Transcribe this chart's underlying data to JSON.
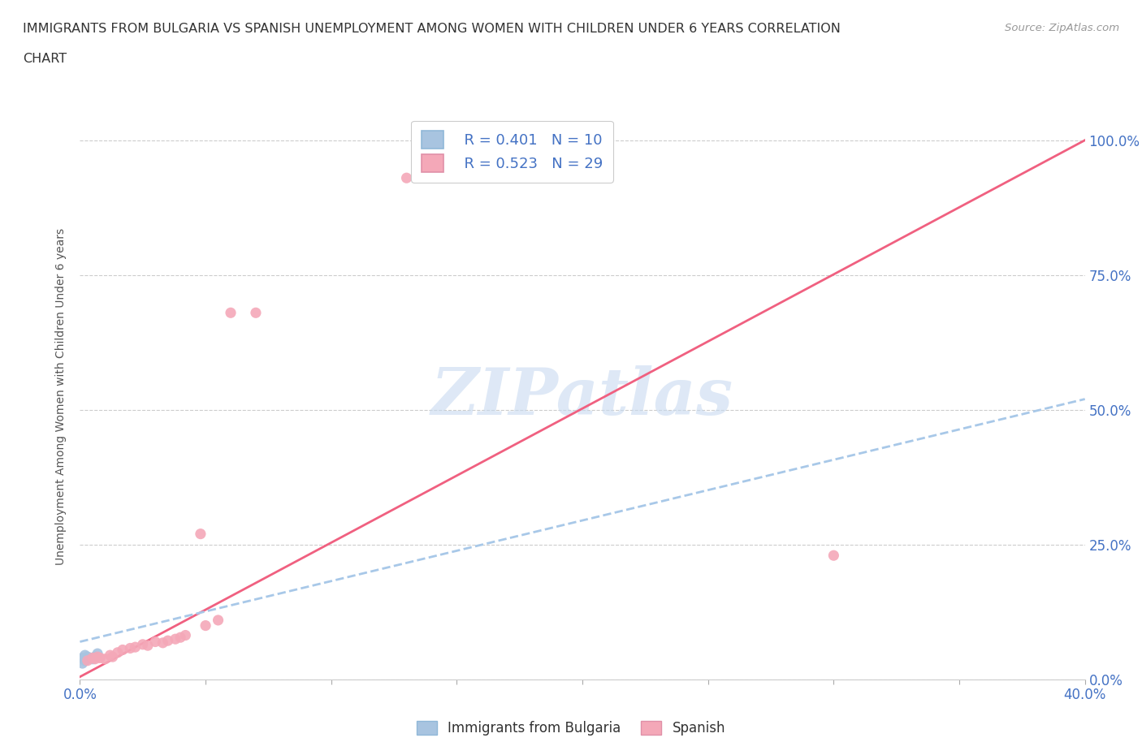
{
  "title_line1": "IMMIGRANTS FROM BULGARIA VS SPANISH UNEMPLOYMENT AMONG WOMEN WITH CHILDREN UNDER 6 YEARS CORRELATION",
  "title_line2": "CHART",
  "source": "Source: ZipAtlas.com",
  "ylabel": "Unemployment Among Women with Children Under 6 years",
  "xlim": [
    0.0,
    0.4
  ],
  "ylim": [
    0.0,
    1.05
  ],
  "yticks": [
    0.0,
    0.25,
    0.5,
    0.75,
    1.0
  ],
  "ytick_labels": [
    "0.0%",
    "25.0%",
    "50.0%",
    "75.0%",
    "100.0%"
  ],
  "xticks": [
    0.0,
    0.05,
    0.1,
    0.15,
    0.2,
    0.25,
    0.3,
    0.35,
    0.4
  ],
  "xtick_labels": [
    "0.0%",
    "",
    "",
    "",
    "",
    "",
    "",
    "",
    "40.0%"
  ],
  "bg_color": "#ffffff",
  "watermark_text": "ZIPatlas",
  "watermark_color": "#c8daf0",
  "bulgaria_color": "#a8c4e0",
  "spanish_color": "#f4a8b8",
  "trendline_bulgaria_color": "#a8c8e8",
  "trendline_spanish_color": "#f06080",
  "legend_R_bulgaria": "R = 0.401",
  "legend_N_bulgaria": "N = 10",
  "legend_R_spanish": "R = 0.523",
  "legend_N_spanish": "N = 29",
  "bulgaria_x": [
    0.001,
    0.001,
    0.002,
    0.002,
    0.003,
    0.003,
    0.004,
    0.005,
    0.006,
    0.007
  ],
  "bulgaria_y": [
    0.03,
    0.04,
    0.035,
    0.045,
    0.038,
    0.042,
    0.04,
    0.038,
    0.042,
    0.048
  ],
  "spanish_x": [
    0.003,
    0.005,
    0.006,
    0.007,
    0.008,
    0.01,
    0.012,
    0.013,
    0.015,
    0.017,
    0.02,
    0.022,
    0.025,
    0.027,
    0.03,
    0.033,
    0.035,
    0.038,
    0.04,
    0.042,
    0.048,
    0.06,
    0.07,
    0.13,
    0.18,
    0.2,
    0.3,
    0.05,
    0.055
  ],
  "spanish_y": [
    0.035,
    0.04,
    0.038,
    0.042,
    0.04,
    0.038,
    0.045,
    0.042,
    0.05,
    0.055,
    0.058,
    0.06,
    0.065,
    0.063,
    0.07,
    0.068,
    0.072,
    0.075,
    0.078,
    0.082,
    0.27,
    0.68,
    0.68,
    0.93,
    0.96,
    1.0,
    0.23,
    0.1,
    0.11
  ],
  "trendline_spanish_x0": 0.0,
  "trendline_spanish_y0": 0.005,
  "trendline_spanish_x1": 0.4,
  "trendline_spanish_y1": 1.0,
  "trendline_bulgaria_x0": 0.0,
  "trendline_bulgaria_y0": 0.07,
  "trendline_bulgaria_x1": 0.4,
  "trendline_bulgaria_y1": 0.52
}
